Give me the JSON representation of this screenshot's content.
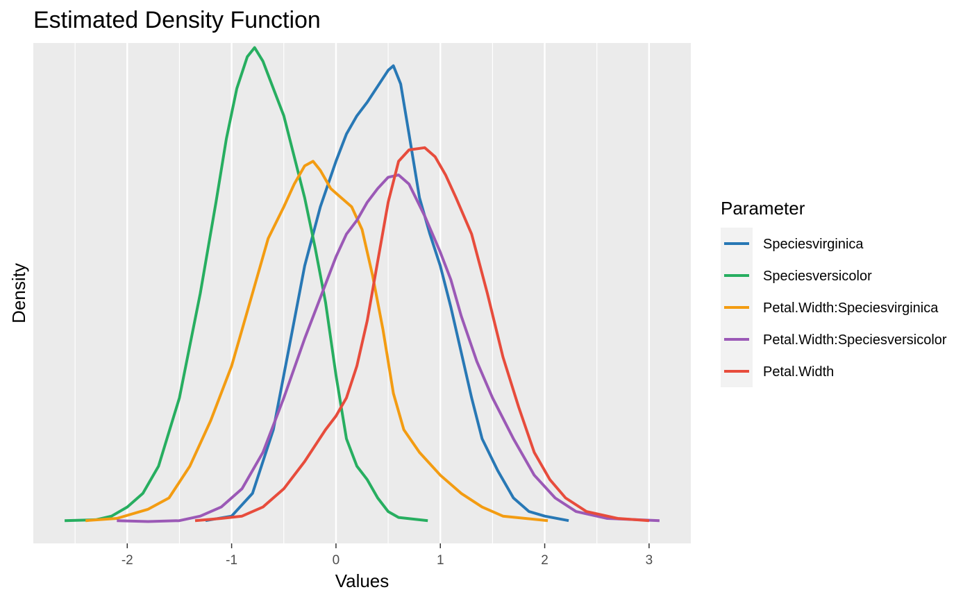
{
  "chart_data": {
    "type": "line",
    "title": "Estimated Density Function",
    "xlabel": "Values",
    "ylabel": "Density",
    "xlim": [
      -2.9,
      3.4
    ],
    "ylim": [
      -0.05,
      1.05
    ],
    "x_ticks": [
      -2,
      -1,
      0,
      1,
      2,
      3
    ],
    "x_tick_labels": [
      "-2",
      "-1",
      "0",
      "1",
      "2",
      "3"
    ],
    "y_ticks_shown": false,
    "grid": true,
    "legend_title": "Parameter",
    "legend_position": "right",
    "series": [
      {
        "name": "Speciesvirginica",
        "color": "#2878B5",
        "points": [
          [
            -1.25,
            0.0
          ],
          [
            -1.0,
            0.01
          ],
          [
            -0.8,
            0.06
          ],
          [
            -0.6,
            0.2
          ],
          [
            -0.45,
            0.38
          ],
          [
            -0.3,
            0.56
          ],
          [
            -0.15,
            0.69
          ],
          [
            0.0,
            0.79
          ],
          [
            0.1,
            0.85
          ],
          [
            0.2,
            0.89
          ],
          [
            0.3,
            0.92
          ],
          [
            0.4,
            0.955
          ],
          [
            0.5,
            0.99
          ],
          [
            0.55,
            1.0
          ],
          [
            0.62,
            0.96
          ],
          [
            0.7,
            0.85
          ],
          [
            0.8,
            0.71
          ],
          [
            0.9,
            0.63
          ],
          [
            1.0,
            0.56
          ],
          [
            1.1,
            0.47
          ],
          [
            1.2,
            0.37
          ],
          [
            1.3,
            0.27
          ],
          [
            1.4,
            0.18
          ],
          [
            1.55,
            0.11
          ],
          [
            1.7,
            0.05
          ],
          [
            1.85,
            0.02
          ],
          [
            2.0,
            0.01
          ],
          [
            2.23,
            0.0
          ]
        ]
      },
      {
        "name": "Speciesversicolor",
        "color": "#27AE60",
        "points": [
          [
            -2.6,
            0.0
          ],
          [
            -2.3,
            0.002
          ],
          [
            -2.15,
            0.01
          ],
          [
            -2.0,
            0.03
          ],
          [
            -1.85,
            0.06
          ],
          [
            -1.7,
            0.12
          ],
          [
            -1.5,
            0.27
          ],
          [
            -1.3,
            0.5
          ],
          [
            -1.15,
            0.7
          ],
          [
            -1.05,
            0.84
          ],
          [
            -0.95,
            0.95
          ],
          [
            -0.85,
            1.02
          ],
          [
            -0.78,
            1.04
          ],
          [
            -0.7,
            1.01
          ],
          [
            -0.6,
            0.95
          ],
          [
            -0.5,
            0.89
          ],
          [
            -0.4,
            0.8
          ],
          [
            -0.3,
            0.71
          ],
          [
            -0.2,
            0.6
          ],
          [
            -0.1,
            0.48
          ],
          [
            0.0,
            0.32
          ],
          [
            0.1,
            0.18
          ],
          [
            0.2,
            0.12
          ],
          [
            0.3,
            0.09
          ],
          [
            0.4,
            0.05
          ],
          [
            0.5,
            0.02
          ],
          [
            0.6,
            0.007
          ],
          [
            0.88,
            0.0
          ]
        ]
      },
      {
        "name": "Petal.Width:Speciesvirginica",
        "color": "#F39C12",
        "points": [
          [
            -2.4,
            0.0
          ],
          [
            -2.1,
            0.005
          ],
          [
            -1.8,
            0.025
          ],
          [
            -1.6,
            0.05
          ],
          [
            -1.4,
            0.12
          ],
          [
            -1.2,
            0.22
          ],
          [
            -1.0,
            0.34
          ],
          [
            -0.8,
            0.5
          ],
          [
            -0.65,
            0.62
          ],
          [
            -0.5,
            0.69
          ],
          [
            -0.4,
            0.74
          ],
          [
            -0.3,
            0.78
          ],
          [
            -0.22,
            0.79
          ],
          [
            -0.15,
            0.77
          ],
          [
            -0.05,
            0.73
          ],
          [
            0.05,
            0.71
          ],
          [
            0.15,
            0.69
          ],
          [
            0.25,
            0.64
          ],
          [
            0.35,
            0.54
          ],
          [
            0.45,
            0.42
          ],
          [
            0.55,
            0.28
          ],
          [
            0.65,
            0.2
          ],
          [
            0.8,
            0.15
          ],
          [
            1.0,
            0.1
          ],
          [
            1.2,
            0.06
          ],
          [
            1.4,
            0.03
          ],
          [
            1.6,
            0.01
          ],
          [
            2.03,
            0.0
          ]
        ]
      },
      {
        "name": "Petal.Width:Speciesversicolor",
        "color": "#9B59B6",
        "points": [
          [
            -2.1,
            0.0
          ],
          [
            -1.8,
            -0.002
          ],
          [
            -1.5,
            0.0
          ],
          [
            -1.3,
            0.01
          ],
          [
            -1.1,
            0.03
          ],
          [
            -0.9,
            0.07
          ],
          [
            -0.7,
            0.15
          ],
          [
            -0.5,
            0.27
          ],
          [
            -0.3,
            0.4
          ],
          [
            -0.1,
            0.52
          ],
          [
            0.0,
            0.58
          ],
          [
            0.1,
            0.63
          ],
          [
            0.2,
            0.66
          ],
          [
            0.3,
            0.7
          ],
          [
            0.4,
            0.73
          ],
          [
            0.5,
            0.755
          ],
          [
            0.6,
            0.76
          ],
          [
            0.7,
            0.74
          ],
          [
            0.85,
            0.67
          ],
          [
            1.0,
            0.59
          ],
          [
            1.1,
            0.53
          ],
          [
            1.2,
            0.45
          ],
          [
            1.35,
            0.35
          ],
          [
            1.5,
            0.27
          ],
          [
            1.7,
            0.18
          ],
          [
            1.9,
            0.1
          ],
          [
            2.1,
            0.05
          ],
          [
            2.3,
            0.02
          ],
          [
            2.6,
            0.005
          ],
          [
            3.1,
            0.0
          ]
        ]
      },
      {
        "name": "Petal.Width",
        "color": "#E74C3C",
        "points": [
          [
            -1.35,
            0.0
          ],
          [
            -1.1,
            0.005
          ],
          [
            -0.9,
            0.01
          ],
          [
            -0.7,
            0.03
          ],
          [
            -0.5,
            0.07
          ],
          [
            -0.3,
            0.13
          ],
          [
            -0.1,
            0.2
          ],
          [
            0.0,
            0.23
          ],
          [
            0.1,
            0.27
          ],
          [
            0.2,
            0.34
          ],
          [
            0.3,
            0.44
          ],
          [
            0.4,
            0.57
          ],
          [
            0.5,
            0.7
          ],
          [
            0.6,
            0.79
          ],
          [
            0.7,
            0.815
          ],
          [
            0.85,
            0.82
          ],
          [
            0.95,
            0.8
          ],
          [
            1.05,
            0.76
          ],
          [
            1.15,
            0.71
          ],
          [
            1.3,
            0.63
          ],
          [
            1.45,
            0.5
          ],
          [
            1.6,
            0.36
          ],
          [
            1.75,
            0.25
          ],
          [
            1.9,
            0.15
          ],
          [
            2.05,
            0.09
          ],
          [
            2.2,
            0.05
          ],
          [
            2.4,
            0.02
          ],
          [
            2.7,
            0.005
          ],
          [
            3.0,
            0.0
          ]
        ]
      }
    ]
  }
}
